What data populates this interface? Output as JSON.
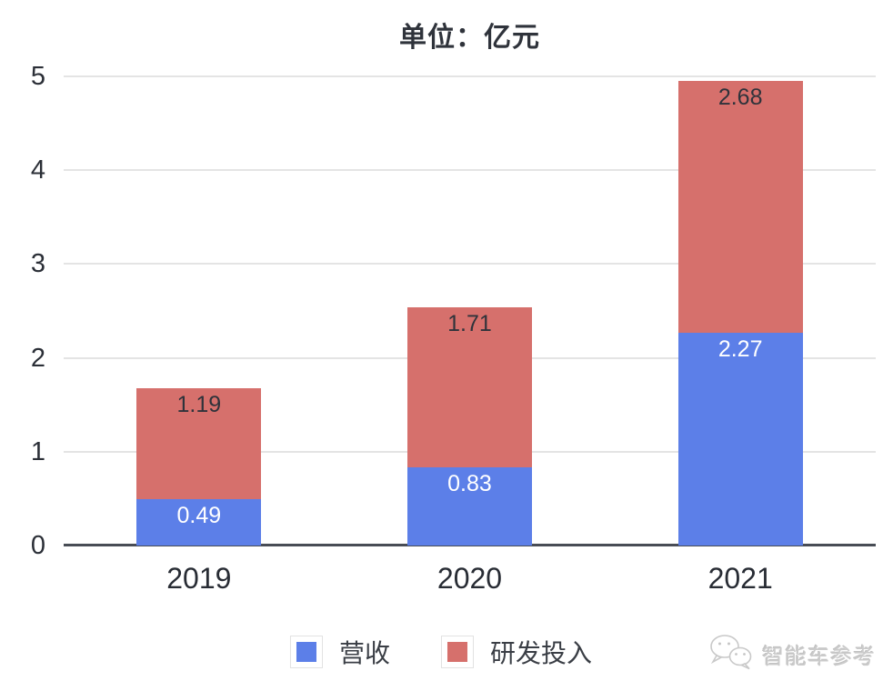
{
  "title": "单位：亿元",
  "legend": [
    {
      "label": "营收",
      "color": "#5C7FE8"
    },
    {
      "label": "研发投入",
      "color": "#D6706C"
    }
  ],
  "watermark": {
    "text": "智能车参考",
    "icon": "wechat-bubbles-icon"
  },
  "chart_data": {
    "type": "bar",
    "stacked": true,
    "title": "单位：亿元",
    "categories": [
      "2019",
      "2020",
      "2021"
    ],
    "series": [
      {
        "name": "营收",
        "color": "#5C7FE8",
        "label_color": "#ffffff",
        "values": [
          0.49,
          0.83,
          2.27
        ]
      },
      {
        "name": "研发投入",
        "color": "#D6706C",
        "label_color": "#2f333b",
        "values": [
          1.19,
          1.71,
          2.68
        ]
      }
    ],
    "xlabel": "",
    "ylabel": "",
    "ylim": [
      0,
      5
    ],
    "yticks": [
      0,
      1,
      2,
      3,
      4,
      5
    ],
    "grid": true,
    "gridline_color": "#e4e4e4",
    "axis_color": "#484c55",
    "legend_position": "bottom"
  }
}
